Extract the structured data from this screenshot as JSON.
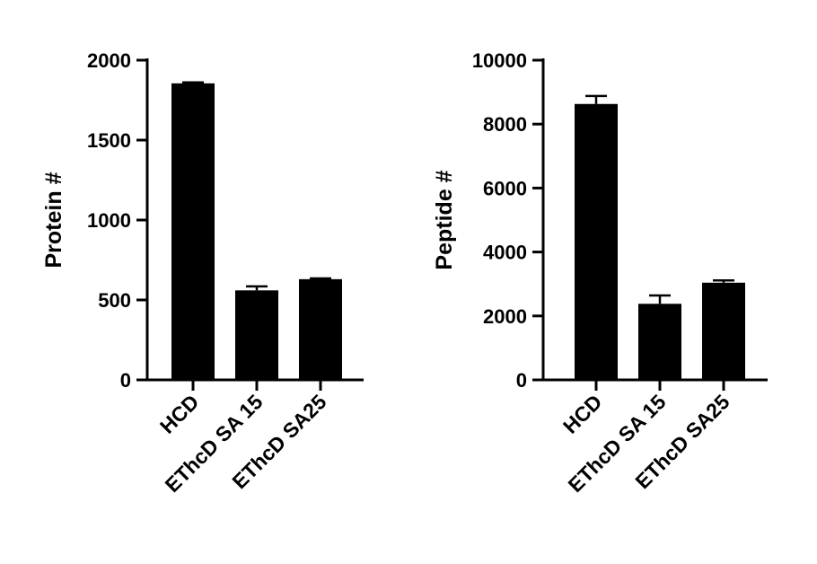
{
  "chart_data": [
    {
      "type": "bar",
      "categories": [
        "HCD",
        "EThcD SA 15",
        "EThcD SA25"
      ],
      "values": [
        1855,
        560,
        630
      ],
      "errors": [
        6,
        25,
        5
      ],
      "ylabel": "Protein #",
      "xlabel": "",
      "ylim": [
        0,
        2000
      ],
      "yticks": [
        0,
        500,
        1000,
        1500,
        2000
      ],
      "grid": false,
      "bar_color": "#000000"
    },
    {
      "type": "bar",
      "categories": [
        "HCD",
        "EThcD SA 15",
        "EThcD SA25"
      ],
      "values": [
        8630,
        2380,
        3040
      ],
      "errors": [
        250,
        260,
        70
      ],
      "ylabel": "Peptide #",
      "xlabel": "",
      "ylim": [
        0,
        10000
      ],
      "yticks": [
        0,
        2000,
        4000,
        6000,
        8000,
        10000
      ],
      "grid": false,
      "bar_color": "#000000"
    }
  ]
}
